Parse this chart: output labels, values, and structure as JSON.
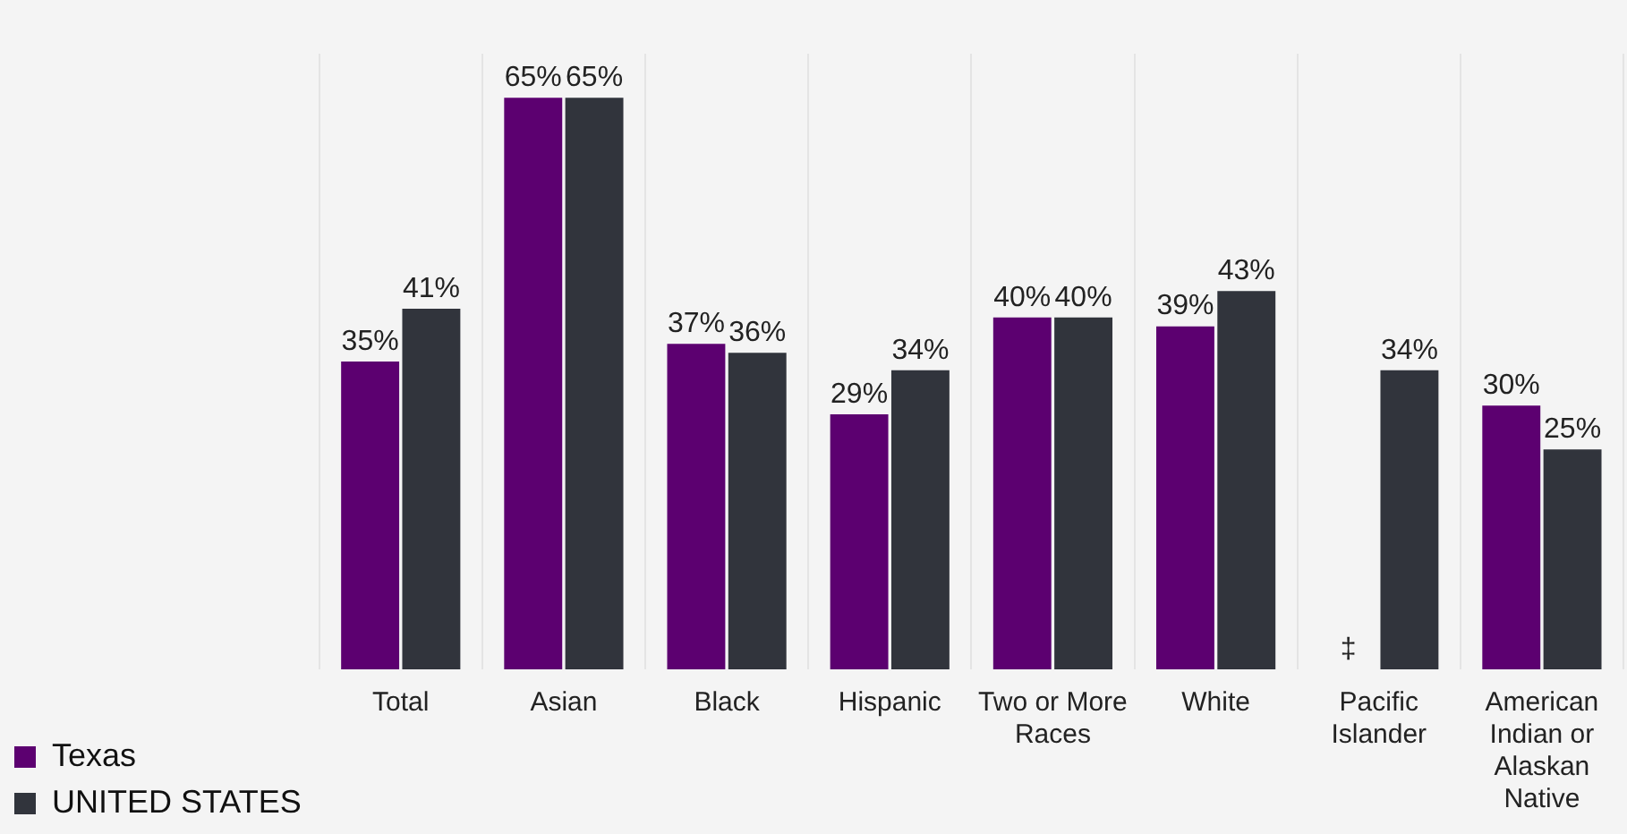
{
  "chart_data": {
    "type": "bar",
    "categories": [
      "Total",
      "Asian",
      "Black",
      "Hispanic",
      "Two or More Races",
      "White",
      "Pacific Islander",
      "American Indian or Alaskan Native"
    ],
    "series": [
      {
        "name": "Texas",
        "color": "#5c0070",
        "values": [
          35,
          65,
          37,
          29,
          40,
          39,
          null,
          30
        ],
        "value_labels": [
          "35%",
          "65%",
          "37%",
          "29%",
          "40%",
          "39%",
          "‡",
          "30%"
        ]
      },
      {
        "name": "UNITED STATES",
        "color": "#31343c",
        "values": [
          41,
          65,
          36,
          34,
          40,
          43,
          34,
          25
        ],
        "value_labels": [
          "41%",
          "65%",
          "36%",
          "34%",
          "40%",
          "43%",
          "34%",
          "25%"
        ]
      }
    ],
    "grid": "x",
    "legend": "bottom left"
  }
}
